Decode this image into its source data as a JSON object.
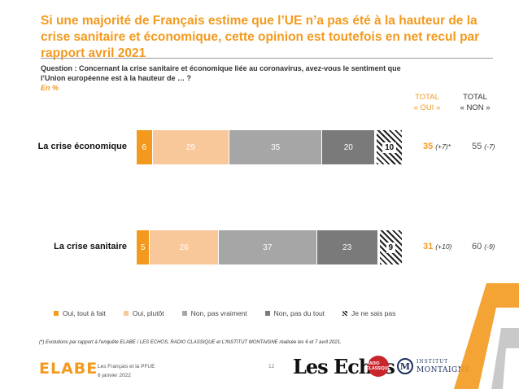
{
  "title": "Si une majorité de Français estime que l’UE n’a pas été à la hauteur de la crise sanitaire et économique, cette opinion est toutefois en net recul par rapport avril 2021",
  "question": "Question : Concernant la crise sanitaire et économique liée au coronavirus, avez-vous le sentiment que l’Union européenne est à la hauteur de … ?",
  "unit": "En %",
  "columns": {
    "oui_line1": "TOTAL",
    "oui_line2": "« OUI »",
    "non_line1": "TOTAL",
    "non_line2": "« NON »"
  },
  "chart_data": {
    "type": "bar",
    "orientation": "horizontal",
    "stacked": true,
    "categories": [
      "La crise économique",
      "La crise sanitaire"
    ],
    "series": [
      {
        "name": "Oui, tout à fait",
        "color": "#f39a1e",
        "values": [
          6,
          5
        ]
      },
      {
        "name": "Oui, plutôt",
        "color": "#f8c79a",
        "values": [
          29,
          26
        ]
      },
      {
        "name": "Non, pas vraiment",
        "color": "#a6a6a6",
        "values": [
          35,
          37
        ]
      },
      {
        "name": "Non, pas du tout",
        "color": "#7a7a7a",
        "values": [
          20,
          23
        ]
      },
      {
        "name": "Je ne sais pas",
        "color": "#ffffff",
        "pattern": "hatched",
        "values": [
          10,
          9
        ]
      }
    ],
    "totals_oui": [
      {
        "value": "35",
        "evolution": "(+7)*"
      },
      {
        "value": "31",
        "evolution": "(+10)"
      }
    ],
    "totals_non": [
      {
        "value": "55",
        "evolution": "(-7)"
      },
      {
        "value": "60",
        "evolution": "(-9)"
      }
    ],
    "legend_position": "bottom"
  },
  "footnote": "(*) Evolutions par rapport à l’enquête ELABE / LES ECHOS, RADIO CLASSIQUE et L’INSTITUT MONTAIGNE réalisée les 6 et 7 avril 2021.",
  "footer": {
    "study": "Les Français et la PFUE",
    "date": "6 janvier 2022",
    "page": "12",
    "brand_elabe": "ELABE",
    "brand_echos": "Les Echos",
    "brand_radio": "RADIO CLASSIQUE",
    "brand_im_mark": "M",
    "brand_im_line1": "INSTITUT",
    "brand_im_line2": "MONTAIGNE"
  }
}
